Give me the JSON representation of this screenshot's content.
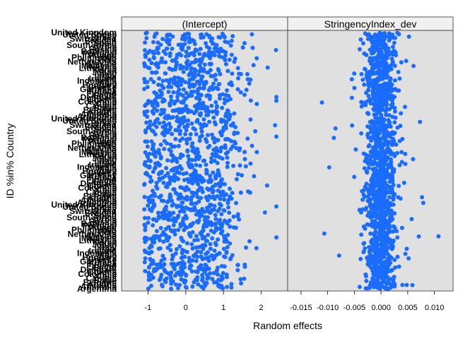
{
  "chart_data": {
    "type": "scatter",
    "xlabel": "Random effects",
    "ylabel": "ID %in% Country",
    "point_color": "#1a6cff",
    "panels": [
      {
        "strip": "(Intercept)",
        "xlim": [
          -1.7,
          2.7
        ],
        "ticks": [
          -1,
          0,
          1,
          2
        ],
        "tick_labels": [
          "-1",
          "0",
          "1",
          "2"
        ],
        "bulk_range": [
          -1.1,
          0.9
        ],
        "outlier_range": [
          0.9,
          2.4
        ]
      },
      {
        "strip": "StringencyIndex_dev",
        "xlim": [
          -0.0175,
          0.0135
        ],
        "ticks": [
          -0.015,
          -0.01,
          -0.005,
          0,
          0.005,
          0.01
        ],
        "tick_labels": [
          "-0.015",
          "-0.010",
          "-0.005",
          "0.000",
          "0.005",
          "0.010"
        ],
        "bulk_range": [
          -0.004,
          0.004
        ],
        "outlier_range": [
          -0.016,
          0.012
        ]
      }
    ],
    "y_tick_labels": [
      "United Kingdom",
      "United States",
      "Turkey",
      "Switzerland",
      "Sweden",
      "Spain",
      "South Africa",
      "Serbia",
      "Russia",
      "Romania",
      "Portugal",
      "Poland",
      "Philippines",
      "Peru",
      "Netherlands",
      "Mexico",
      "Malaysia",
      "Lithuania",
      "Korea",
      "Japan",
      "Italy",
      "Israel",
      "Ireland",
      "Indonesia",
      "India",
      "Hungary",
      "Greece",
      "Germany",
      "France",
      "Finland",
      "Egypt",
      "Denmark",
      "Croatia",
      "Colombia",
      "Chile",
      "Canada",
      "Brazil",
      "Belgium",
      "Austria",
      "Australia",
      "Argentina"
    ]
  }
}
